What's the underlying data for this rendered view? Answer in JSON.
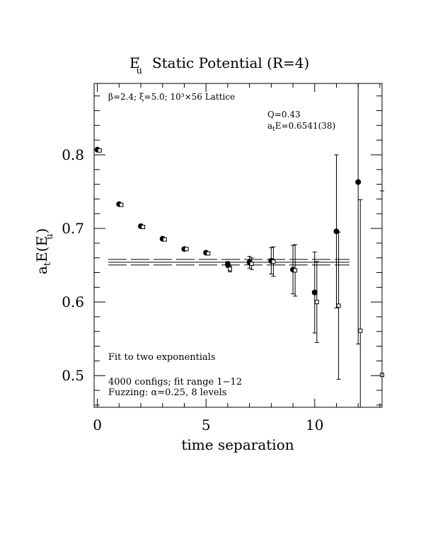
{
  "chart_data": {
    "type": "scatter",
    "title_main": "E",
    "title_prime": "′",
    "title_sub": "u",
    "title_rest": "Static Potential (R=4)",
    "xlabel": "time separation",
    "ylabel_pre": "a",
    "ylabel_sub1": "t",
    "ylabel_mid": "E(E",
    "ylabel_prime": "′",
    "ylabel_sub2": "u",
    "ylabel_post": ")",
    "xlim": [
      -0.15,
      13.1
    ],
    "ylim": [
      0.457,
      0.897
    ],
    "x_ticks": [
      0,
      5,
      10
    ],
    "x_tick_labels": [
      "0",
      "5",
      "10"
    ],
    "y_ticks": [
      0.5,
      0.6,
      0.7,
      0.8
    ],
    "y_tick_labels": [
      "0.5",
      "0.6",
      "0.7",
      "0.8"
    ],
    "annotations": {
      "lattice": "β=2.4; ξ=5.0; 10³×56 Lattice",
      "q_value": "Q=0.43",
      "energy_pre": "a",
      "energy_sub": "t",
      "energy_post": "E=0.6541(38)",
      "fit_type": "Fit to two exponentials",
      "configs": "4000 configs; fit range 1−12",
      "fuzzing": "Fuzzing: α=0.25, 8 levels"
    },
    "series": [
      {
        "marker": "filled-circle",
        "points": [
          {
            "x": 0,
            "y": 0.807,
            "err": 0.001
          },
          {
            "x": 1,
            "y": 0.733,
            "err": 0.001
          },
          {
            "x": 2,
            "y": 0.703,
            "err": 0.002
          },
          {
            "x": 3,
            "y": 0.686,
            "err": 0.002
          },
          {
            "x": 4,
            "y": 0.672,
            "err": 0.002
          },
          {
            "x": 5,
            "y": 0.667,
            "err": 0.002
          },
          {
            "x": 6,
            "y": 0.651,
            "err": 0.004
          },
          {
            "x": 7,
            "y": 0.654,
            "err": 0.008
          },
          {
            "x": 8,
            "y": 0.656,
            "err": 0.018
          },
          {
            "x": 9,
            "y": 0.644,
            "err": 0.033
          },
          {
            "x": 10,
            "y": 0.613,
            "err": 0.055
          },
          {
            "x": 11,
            "y": 0.696,
            "err": 0.104
          },
          {
            "x": 12,
            "y": 0.763,
            "err": 0.22
          }
        ]
      },
      {
        "marker": "open-square",
        "points": [
          {
            "x": 0.1,
            "y": 0.806,
            "err": 0.001
          },
          {
            "x": 1.1,
            "y": 0.732,
            "err": 0.001
          },
          {
            "x": 2.1,
            "y": 0.702,
            "err": 0.002
          },
          {
            "x": 3.1,
            "y": 0.685,
            "err": 0.002
          },
          {
            "x": 4.1,
            "y": 0.672,
            "err": 0.002
          },
          {
            "x": 5.1,
            "y": 0.666,
            "err": 0.002
          },
          {
            "x": 6.1,
            "y": 0.645,
            "err": 0.004
          },
          {
            "x": 7.1,
            "y": 0.652,
            "err": 0.008
          },
          {
            "x": 8.1,
            "y": 0.655,
            "err": 0.02
          },
          {
            "x": 9.1,
            "y": 0.643,
            "err": 0.035
          },
          {
            "x": 10.1,
            "y": 0.6,
            "err": 0.055
          },
          {
            "x": 11.1,
            "y": 0.595,
            "err": 0.1
          },
          {
            "x": 12.1,
            "y": 0.561,
            "err": 0.178
          },
          {
            "x": 13.1,
            "y": 0.501,
            "err": 0.25
          }
        ]
      }
    ],
    "fit": {
      "x_range": [
        0.5,
        11.6
      ],
      "value": 0.6541,
      "error": 0.0038
    }
  }
}
